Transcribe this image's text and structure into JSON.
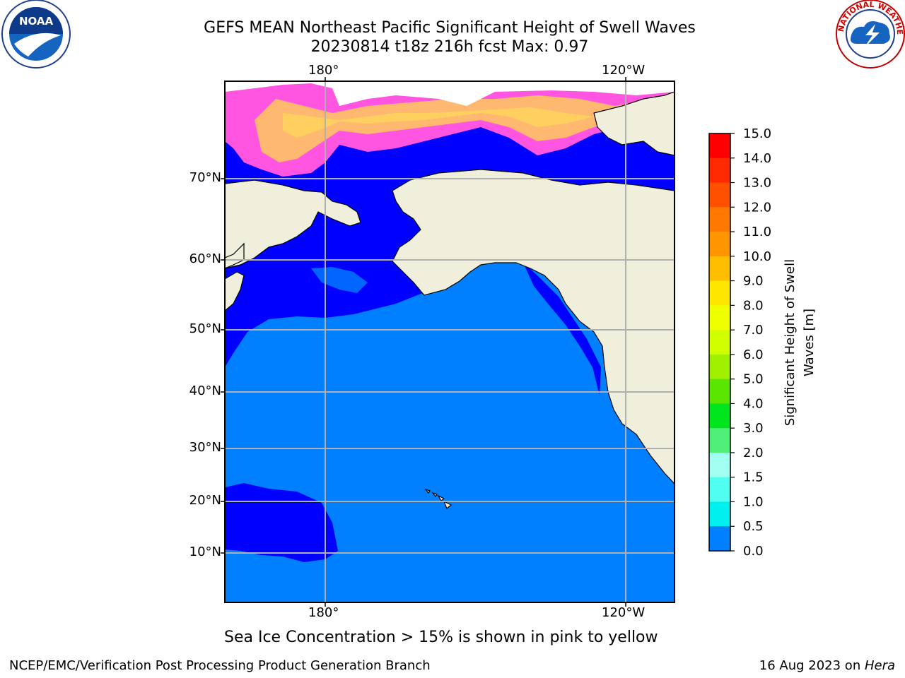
{
  "header": {
    "title_line1": "GEFS MEAN Northeast Pacific Significant Height of Swell Waves",
    "title_line2": "20230814 t18z 216h fcst   Max: 0.97"
  },
  "logos": {
    "left": "noara-logo",
    "right": "nws-logo",
    "left_text": "NOAA",
    "right_ring_text": "NATIONAL WEATHER SERVICE"
  },
  "map": {
    "lon_labels_top": [
      "180°",
      "120°W"
    ],
    "lon_labels_bottom": [
      "180°",
      "120°W"
    ],
    "lat_labels": [
      "70°N",
      "60°N",
      "50°N",
      "40°N",
      "30°N",
      "20°N",
      "10°N"
    ],
    "land_color": "#efefdc",
    "ocean_low_color": "#0000ff",
    "ocean_mid_color": "#0080ff"
  },
  "colorbar": {
    "label": "Significant Height of Swell Waves [m]",
    "label_line1": "Significant Height of Swell",
    "label_line2": "Waves [m]",
    "ticks": [
      "15.0",
      "14.0",
      "13.0",
      "12.0",
      "11.0",
      "10.0",
      "9.0",
      "8.0",
      "7.0",
      "6.0",
      "5.0",
      "4.0",
      "3.0",
      "2.0",
      "1.5",
      "1.0",
      "0.5",
      "0.0"
    ],
    "colors": [
      "#ff0000",
      "#ff2800",
      "#ff5000",
      "#ff7800",
      "#ff9600",
      "#ffbe00",
      "#ffe600",
      "#f0ff00",
      "#d2ff00",
      "#a0f000",
      "#5ae600",
      "#00e61e",
      "#50f078",
      "#a0fff0",
      "#50fff0",
      "#00f0f0",
      "#0080ff",
      "#0000ff"
    ]
  },
  "footer": {
    "note": "Sea Ice Concentration > 15% is shown in pink to yellow",
    "credit": "NCEP/EMC/Verification Post Processing Product Generation Branch",
    "date": "16 Aug 2023 on ",
    "machine": "Hera"
  }
}
